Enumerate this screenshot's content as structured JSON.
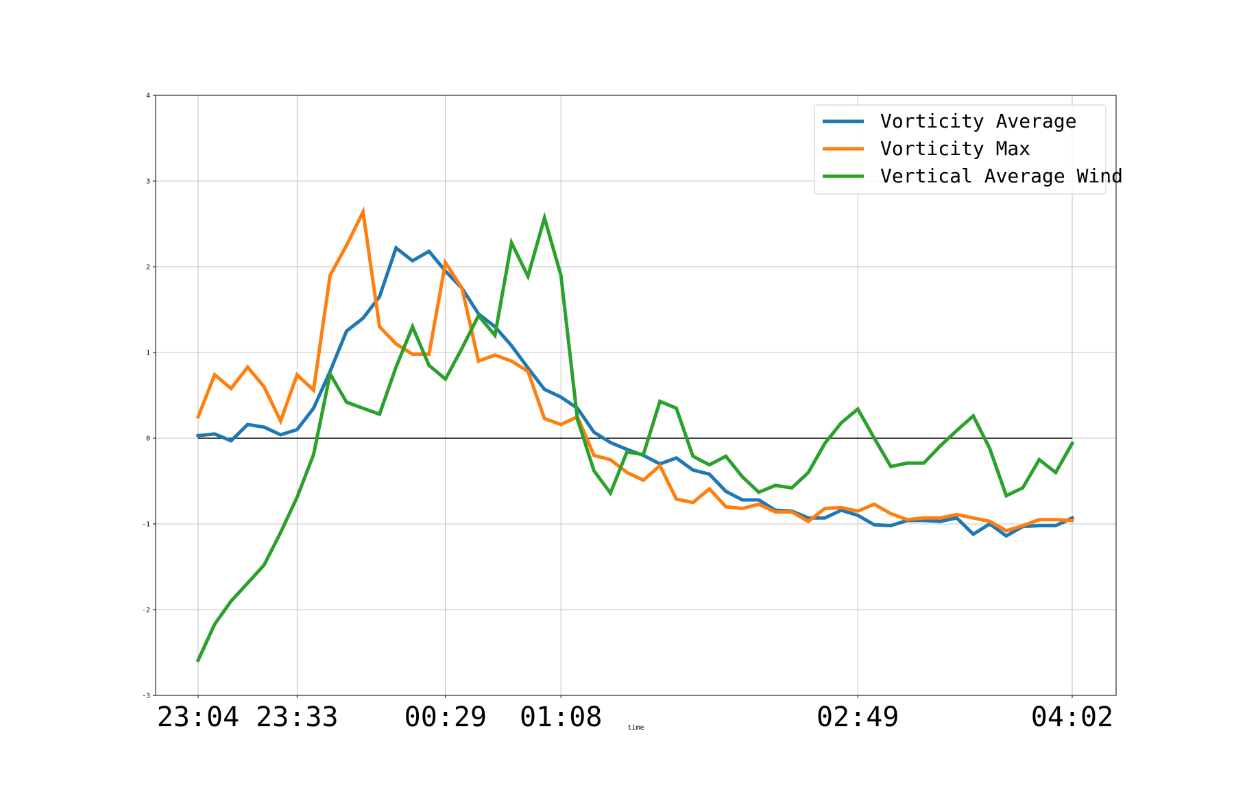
{
  "chart_data": {
    "type": "line",
    "title": "",
    "xlabel": "time",
    "ylabel": "",
    "ylim": [
      -3,
      4
    ],
    "yticks": [
      -3,
      -2,
      -1,
      0,
      1,
      2,
      3,
      4
    ],
    "ytick_labels": [
      "-3",
      "-2",
      "-1",
      "0",
      "1",
      "2",
      "3",
      "4"
    ],
    "xticks": [
      {
        "index": 0,
        "label": "23:04"
      },
      {
        "index": 6,
        "label": "23:33"
      },
      {
        "index": 15,
        "label": "00:29"
      },
      {
        "index": 22,
        "label": "01:08"
      },
      {
        "index": 40,
        "label": "02:49"
      },
      {
        "index": 53,
        "label": "04:02"
      }
    ],
    "grid": true,
    "zero_line": true,
    "legend_position": "top-right",
    "series": [
      {
        "name": "Vorticity Average",
        "color": "#1f77b4",
        "values": [
          0.03,
          0.05,
          -0.03,
          0.16,
          0.13,
          0.04,
          0.1,
          0.35,
          0.78,
          1.25,
          1.4,
          1.65,
          2.22,
          2.07,
          2.18,
          1.95,
          1.75,
          1.45,
          1.3,
          1.08,
          0.82,
          0.57,
          0.48,
          0.35,
          0.07,
          -0.05,
          -0.13,
          -0.2,
          -0.3,
          -0.23,
          -0.37,
          -0.42,
          -0.62,
          -0.72,
          -0.72,
          -0.84,
          -0.85,
          -0.93,
          -0.93,
          -0.84,
          -0.9,
          -1.01,
          -1.02,
          -0.96,
          -0.96,
          -0.97,
          -0.93,
          -1.12,
          -1.0,
          -1.14,
          -1.03,
          -1.02,
          -1.02,
          -0.93
        ]
      },
      {
        "name": "Vorticity Max",
        "color": "#ff7f0e",
        "values": [
          0.25,
          0.74,
          0.58,
          0.83,
          0.6,
          0.2,
          0.74,
          0.56,
          1.9,
          2.25,
          2.64,
          1.3,
          1.1,
          0.98,
          0.98,
          2.05,
          1.75,
          0.9,
          0.97,
          0.9,
          0.78,
          0.23,
          0.16,
          0.25,
          -0.2,
          -0.25,
          -0.4,
          -0.49,
          -0.32,
          -0.71,
          -0.75,
          -0.59,
          -0.8,
          -0.82,
          -0.77,
          -0.86,
          -0.86,
          -0.97,
          -0.82,
          -0.81,
          -0.85,
          -0.77,
          -0.88,
          -0.95,
          -0.93,
          -0.93,
          -0.89,
          -0.93,
          -0.97,
          -1.08,
          -1.02,
          -0.95,
          -0.95,
          -0.96
        ]
      },
      {
        "name": "Vertical Average Wind",
        "color": "#2ca02c",
        "values": [
          -2.59,
          -2.17,
          -1.9,
          -1.69,
          -1.48,
          -1.1,
          -0.69,
          -0.19,
          0.75,
          0.42,
          0.35,
          0.28,
          0.83,
          1.3,
          0.85,
          0.69,
          1.05,
          1.43,
          1.2,
          2.28,
          1.89,
          2.57,
          1.9,
          0.22,
          -0.38,
          -0.64,
          -0.16,
          -0.19,
          0.43,
          0.35,
          -0.21,
          -0.31,
          -0.21,
          -0.45,
          -0.63,
          -0.55,
          -0.58,
          -0.4,
          -0.06,
          0.18,
          0.34,
          0.0,
          -0.33,
          -0.29,
          -0.29,
          -0.09,
          0.09,
          0.26,
          -0.12,
          -0.67,
          -0.58,
          -0.25,
          -0.4,
          -0.06
        ]
      }
    ]
  }
}
